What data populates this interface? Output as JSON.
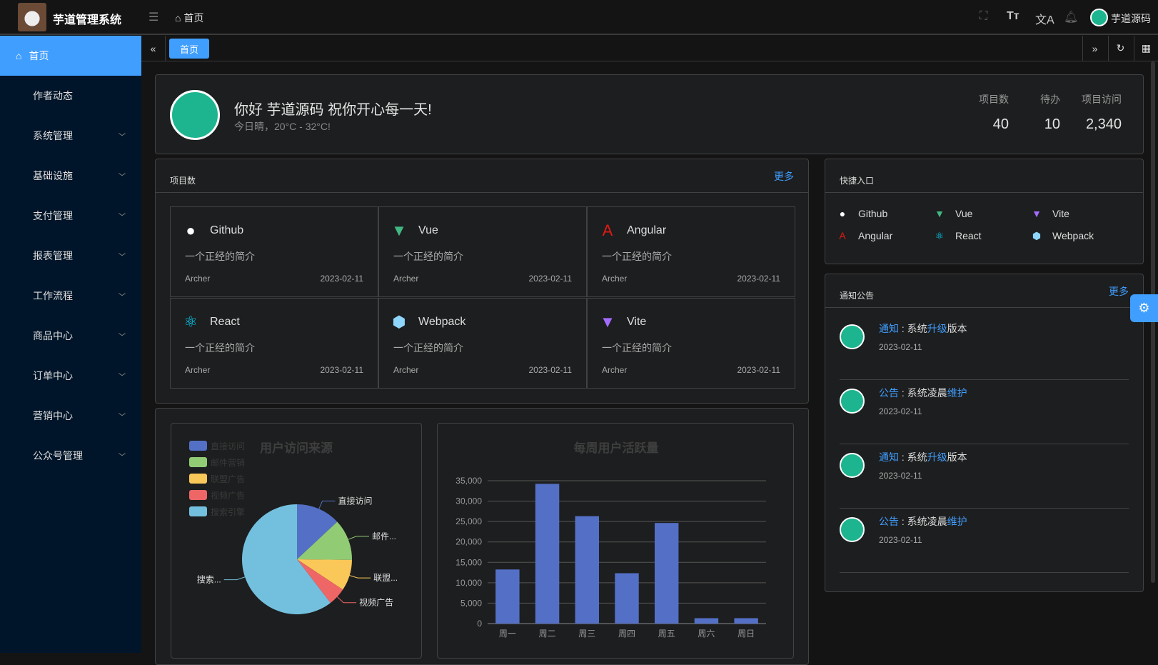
{
  "header": {
    "app_title": "芋道管理系统",
    "breadcrumb": "首页",
    "username": "芋道源码"
  },
  "sidebar": {
    "items": [
      {
        "label": "首页",
        "active": true
      },
      {
        "label": "作者动态"
      },
      {
        "label": "系统管理",
        "expandable": true
      },
      {
        "label": "基础设施",
        "expandable": true
      },
      {
        "label": "支付管理",
        "expandable": true
      },
      {
        "label": "报表管理",
        "expandable": true
      },
      {
        "label": "工作流程",
        "expandable": true
      },
      {
        "label": "商品中心",
        "expandable": true
      },
      {
        "label": "订单中心",
        "expandable": true
      },
      {
        "label": "营销中心",
        "expandable": true
      },
      {
        "label": "公众号管理",
        "expandable": true
      }
    ]
  },
  "tabs": [
    {
      "label": "首页",
      "active": true
    }
  ],
  "welcome": {
    "greeting": "你好 芋道源码 祝你开心每一天!",
    "weather": "今日晴，20°C - 32°C!",
    "stats": [
      {
        "label": "项目数",
        "value": "40"
      },
      {
        "label": "待办",
        "value": "10"
      },
      {
        "label": "项目访问",
        "value": "2,340"
      }
    ]
  },
  "projects": {
    "title": "项目数",
    "more": "更多",
    "items": [
      {
        "name": "Github",
        "icon": "github-icon",
        "desc": "一个正经的简介",
        "author": "Archer",
        "date": "2023-02-11"
      },
      {
        "name": "Vue",
        "icon": "vue-icon",
        "desc": "一个正经的简介",
        "author": "Archer",
        "date": "2023-02-11"
      },
      {
        "name": "Angular",
        "icon": "angular-icon",
        "desc": "一个正经的简介",
        "author": "Archer",
        "date": "2023-02-11"
      },
      {
        "name": "React",
        "icon": "react-icon",
        "desc": "一个正经的简介",
        "author": "Archer",
        "date": "2023-02-11"
      },
      {
        "name": "Webpack",
        "icon": "webpack-icon",
        "desc": "一个正经的简介",
        "author": "Archer",
        "date": "2023-02-11"
      },
      {
        "name": "Vite",
        "icon": "vite-icon",
        "desc": "一个正经的简介",
        "author": "Archer",
        "date": "2023-02-11"
      }
    ]
  },
  "shortcuts": {
    "title": "快捷入口",
    "items": [
      {
        "name": "Github",
        "icon": "github-icon"
      },
      {
        "name": "Vue",
        "icon": "vue-icon"
      },
      {
        "name": "Vite",
        "icon": "vite-icon"
      },
      {
        "name": "Angular",
        "icon": "angular-icon"
      },
      {
        "name": "React",
        "icon": "react-icon"
      },
      {
        "name": "Webpack",
        "icon": "webpack-icon"
      }
    ]
  },
  "notices": {
    "title": "通知公告",
    "more": "更多",
    "items": [
      {
        "type": "通知",
        "text": [
          "系统",
          "升级",
          "版本"
        ],
        "date": "2023-02-11"
      },
      {
        "type": "公告",
        "text": [
          "系统凌晨",
          "维护",
          ""
        ],
        "date": "2023-02-11"
      },
      {
        "type": "通知",
        "text": [
          "系统",
          "升级",
          "版本"
        ],
        "date": "2023-02-11"
      },
      {
        "type": "公告",
        "text": [
          "系统凌晨",
          "维护",
          ""
        ],
        "date": "2023-02-11"
      }
    ]
  },
  "colors": {
    "accent": "#409eff",
    "sidebar": "#001529"
  },
  "chart_data": [
    {
      "type": "pie",
      "title": "用户访问来源",
      "legend_position": "top-left",
      "categories": [
        "直接访问",
        "邮件营销",
        "联盟广告",
        "视频广告",
        "搜索引擎"
      ],
      "labels": [
        "直接访问",
        "邮件...",
        "联盟...",
        "视频广告",
        "搜索..."
      ],
      "values": [
        335,
        310,
        234,
        135,
        1548
      ],
      "colors": [
        "#5470c6",
        "#91cc75",
        "#fac858",
        "#ee6666",
        "#73c0de"
      ]
    },
    {
      "type": "bar",
      "title": "每周用户活跃量",
      "categories": [
        "周一",
        "周二",
        "周三",
        "周四",
        "周五",
        "周六",
        "周日"
      ],
      "values": [
        13253,
        34235,
        26321,
        12340,
        24643,
        1322,
        1324
      ],
      "ylim": [
        0,
        35000
      ],
      "yticks": [
        "0",
        "5,000",
        "10,000",
        "15,000",
        "20,000",
        "25,000",
        "30,000",
        "35,000"
      ],
      "grid": true,
      "color": "#5470c6"
    }
  ]
}
